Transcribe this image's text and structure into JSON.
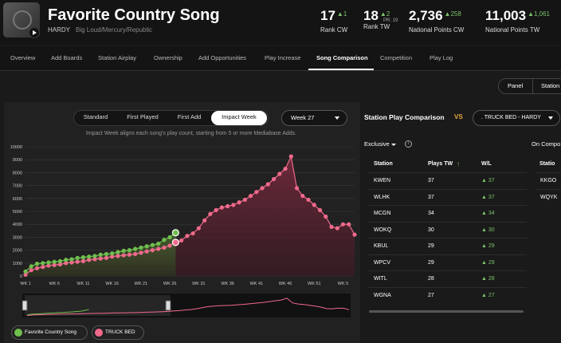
{
  "header": {
    "song_title": "Favorite Country Song",
    "artist": "HARDY",
    "label": "Big Loud/Mercury/Republic",
    "stats": [
      {
        "value": "17",
        "change": "▲1",
        "label": "Rank CW"
      },
      {
        "value": "18",
        "change": "▲2",
        "sub": "PR: 19",
        "label": "Rank TW"
      },
      {
        "value": "2,736",
        "change": "▲258",
        "label": "National Points CW"
      },
      {
        "value": "11,003",
        "change": "▲1,061",
        "label": "National Points TW"
      }
    ]
  },
  "tabs": [
    "Overview",
    "Add Boards",
    "Station Airplay",
    "Ownership",
    "Add Opportunities",
    "Play Increase",
    "Song Comparison",
    "Competition",
    "Play Log"
  ],
  "active_tab": "Song Comparison",
  "view_toggle": {
    "panel": "Panel",
    "station": "Station"
  },
  "chart_controls": {
    "modes": [
      "Standard",
      "First Played",
      "First Add",
      "Impact Week"
    ],
    "active_mode": "Impact Week",
    "week": "Week 27",
    "note": "Impact Week aligns each song's play count, starting from 5 or more Mediabase Adds."
  },
  "comparison": {
    "title": "Station Play Comparison",
    "vs": "VS",
    "selected_song": ". TRUCK BED - HARDY",
    "filter": "Exclusive",
    "on_comp_label": "On Compo",
    "columns": {
      "station": "Station",
      "plays": "Plays TW",
      "wl": "W/L",
      "station2": "Statio"
    },
    "rows": [
      {
        "station": "KWEN",
        "plays": "37",
        "wl": "▲ 37"
      },
      {
        "station": "WLHK",
        "plays": "37",
        "wl": "▲ 37"
      },
      {
        "station": "MCGN",
        "plays": "34",
        "wl": "▲ 34"
      },
      {
        "station": "WOKQ",
        "plays": "30",
        "wl": "▲ 30"
      },
      {
        "station": "KBUL",
        "plays": "29",
        "wl": "▲ 29"
      },
      {
        "station": "WPCV",
        "plays": "29",
        "wl": "▲ 29"
      },
      {
        "station": "WITL",
        "plays": "28",
        "wl": "▲ 28"
      },
      {
        "station": "WGNA",
        "plays": "27",
        "wl": "▲ 27"
      }
    ],
    "rows2": [
      "KKGO",
      "WQYK"
    ]
  },
  "legend": {
    "song_a": "Favorite Country Song",
    "song_b": "TRUCK BED"
  },
  "colors": {
    "green": "#6fbf4e",
    "pink": "#f06a8c",
    "accent_orange": "#e0a63a",
    "up_green": "#7cc26a"
  },
  "chart_data": {
    "type": "area",
    "x_ticks": [
      "WK 1",
      "WK 6",
      "WK 11",
      "WK 16",
      "WK 21",
      "WK 26",
      "WK 31",
      "WK 36",
      "WK 41",
      "WK 46",
      "WK 51",
      "WK 5"
    ],
    "y_ticks": [
      "0",
      "1000",
      "2000",
      "3000",
      "4000",
      "5000",
      "6000",
      "7000",
      "8000",
      "9000",
      "10000"
    ],
    "ylim": [
      0,
      10000
    ],
    "series": [
      {
        "name": "Favorite Country Song",
        "x": [
          1,
          2,
          3,
          4,
          5,
          6,
          7,
          8,
          9,
          10,
          11,
          12,
          13,
          14,
          15,
          16,
          17,
          18,
          19,
          20,
          21,
          22,
          23,
          24,
          25,
          26,
          27
        ],
        "values": [
          350,
          750,
          950,
          1000,
          1050,
          1100,
          1150,
          1250,
          1300,
          1400,
          1450,
          1500,
          1550,
          1650,
          1700,
          1750,
          1850,
          1950,
          2000,
          2100,
          2200,
          2300,
          2400,
          2500,
          2800,
          3000,
          3350
        ]
      },
      {
        "name": "TRUCK BED",
        "x": [
          1,
          2,
          3,
          4,
          5,
          6,
          7,
          8,
          9,
          10,
          11,
          12,
          13,
          14,
          15,
          16,
          17,
          18,
          19,
          20,
          21,
          22,
          23,
          24,
          25,
          26,
          27,
          28,
          29,
          30,
          31,
          32,
          33,
          34,
          35,
          36,
          37,
          38,
          39,
          40,
          41,
          42,
          43,
          44,
          45,
          46,
          47,
          48,
          49,
          50,
          51,
          52,
          53,
          54,
          55,
          56,
          57,
          58
        ],
        "values": [
          100,
          450,
          600,
          700,
          800,
          850,
          900,
          1000,
          1050,
          1100,
          1150,
          1250,
          1300,
          1350,
          1400,
          1500,
          1550,
          1600,
          1650,
          1700,
          1800,
          1900,
          2000,
          2100,
          2200,
          2350,
          2600,
          2750,
          3100,
          3300,
          3700,
          4300,
          4800,
          5100,
          5300,
          5400,
          5500,
          5700,
          5900,
          6200,
          6500,
          6800,
          7100,
          7500,
          7900,
          8300,
          9250,
          6800,
          6200,
          5900,
          5500,
          5100,
          4600,
          3800,
          3700,
          4000,
          4000,
          3200
        ]
      }
    ]
  }
}
